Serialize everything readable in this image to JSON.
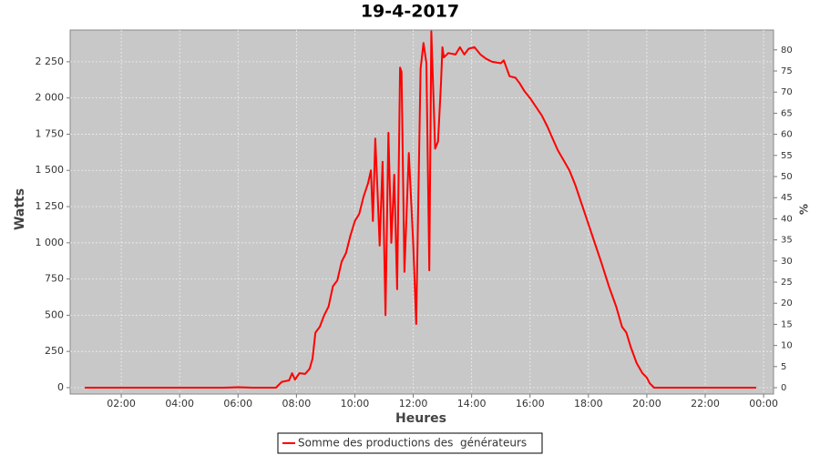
{
  "chart_data": {
    "type": "line",
    "title": "19-4-2017",
    "x_label": "Heures",
    "y_label": "Watts",
    "y2_label": "%",
    "x": [
      0.75,
      2,
      4,
      5.5,
      6,
      6.5,
      7,
      7.3,
      7.5,
      7.75,
      7.85,
      7.95,
      8.1,
      8.3,
      8.45,
      8.55,
      8.65,
      8.8,
      8.95,
      9.1,
      9.25,
      9.4,
      9.55,
      9.7,
      9.85,
      10.0,
      10.15,
      10.3,
      10.45,
      10.55,
      10.62,
      10.7,
      10.78,
      10.85,
      10.95,
      11.05,
      11.15,
      11.25,
      11.35,
      11.45,
      11.55,
      11.6,
      11.7,
      11.85,
      12.0,
      12.1,
      12.25,
      12.35,
      12.45,
      12.55,
      12.62,
      12.75,
      12.85,
      12.95,
      13.0,
      13.05,
      13.2,
      13.45,
      13.6,
      13.75,
      13.9,
      14.1,
      14.3,
      14.5,
      14.7,
      15.0,
      15.1,
      15.3,
      15.5,
      15.65,
      15.8,
      16.0,
      16.2,
      16.4,
      16.6,
      16.75,
      16.95,
      17.15,
      17.35,
      17.55,
      17.75,
      18.0,
      18.25,
      18.45,
      18.7,
      18.95,
      19.15,
      19.3,
      19.45,
      19.65,
      19.85,
      20.0,
      20.1,
      20.25,
      21,
      22,
      23,
      23.75
    ],
    "series": [
      {
        "name": "Somme des productions des  générateurs",
        "color": "#ff0000",
        "values": [
          0,
          0,
          0,
          0,
          3,
          0,
          0,
          0,
          40,
          50,
          100,
          55,
          100,
          95,
          130,
          200,
          380,
          420,
          500,
          560,
          700,
          740,
          870,
          930,
          1050,
          1150,
          1200,
          1320,
          1410,
          1500,
          1150,
          1720,
          1350,
          980,
          1560,
          500,
          1760,
          1000,
          1470,
          680,
          2210,
          2180,
          800,
          1620,
          1000,
          440,
          2200,
          2380,
          2240,
          810,
          2460,
          1650,
          1700,
          2100,
          2350,
          2280,
          2310,
          2300,
          2350,
          2300,
          2340,
          2350,
          2300,
          2270,
          2250,
          2240,
          2260,
          2150,
          2140,
          2100,
          2050,
          2000,
          1940,
          1880,
          1800,
          1730,
          1640,
          1570,
          1500,
          1400,
          1280,
          1130,
          980,
          860,
          700,
          560,
          420,
          380,
          280,
          170,
          100,
          70,
          30,
          0,
          0,
          0,
          0,
          0
        ]
      }
    ],
    "xlim": [
      0.25,
      24.34
    ],
    "xticks": [
      {
        "value": 2,
        "label": "02:00"
      },
      {
        "value": 4,
        "label": "04:00"
      },
      {
        "value": 6,
        "label": "06:00"
      },
      {
        "value": 8,
        "label": "08:00"
      },
      {
        "value": 10,
        "label": "10:00"
      },
      {
        "value": 12,
        "label": "12:00"
      },
      {
        "value": 14,
        "label": "14:00"
      },
      {
        "value": 16,
        "label": "16:00"
      },
      {
        "value": 18,
        "label": "18:00"
      },
      {
        "value": 20,
        "label": "20:00"
      },
      {
        "value": 22,
        "label": "22:00"
      },
      {
        "value": 24,
        "label": "00:00"
      }
    ],
    "ylim": [
      -44,
      2469
    ],
    "yticks": [
      0,
      250,
      500,
      750,
      {
        "value": 1000,
        "label": "1 000"
      },
      {
        "value": 1250,
        "label": "1 250"
      },
      {
        "value": 1500,
        "label": "1 500"
      },
      {
        "value": 1750,
        "label": "1 750"
      },
      {
        "value": 2000,
        "label": "2 000"
      },
      {
        "value": 2250,
        "label": "2 250"
      }
    ],
    "y2lim": [
      -1.5,
      84.7
    ],
    "y2ticks": [
      0,
      5,
      10,
      15,
      20,
      25,
      30,
      35,
      40,
      45,
      50,
      55,
      60,
      65,
      70,
      75,
      80
    ],
    "grid": true
  }
}
